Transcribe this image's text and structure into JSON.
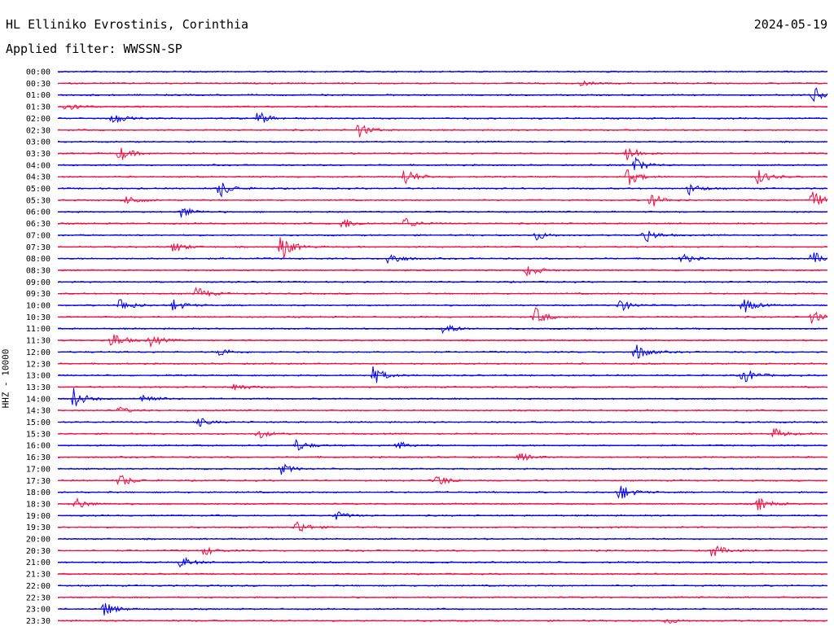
{
  "header": {
    "station": "HL Elliniko Evrostinis, Corinthia",
    "date": "2024-05-19",
    "filter": "Applied filter: WWSSN-SP"
  },
  "chart_data": {
    "type": "line",
    "ylabel": "HHZ - 10000",
    "row_labels": [
      "00:00",
      "00:30",
      "01:00",
      "01:30",
      "02:00",
      "02:30",
      "03:00",
      "03:30",
      "04:00",
      "04:30",
      "05:00",
      "05:30",
      "06:00",
      "06:30",
      "07:00",
      "07:30",
      "08:00",
      "08:30",
      "09:00",
      "09:30",
      "10:00",
      "10:30",
      "11:00",
      "11:30",
      "12:00",
      "12:30",
      "13:00",
      "13:30",
      "14:00",
      "14:30",
      "15:00",
      "15:30",
      "16:00",
      "16:30",
      "17:00",
      "17:30",
      "18:00",
      "18:30",
      "19:00",
      "19:30",
      "20:00",
      "20:30",
      "21:00",
      "21:30",
      "22:00",
      "22:30",
      "23:00",
      "23:30"
    ],
    "colors": [
      "#0000ee",
      "#ee1144"
    ],
    "x_range_minutes": [
      0,
      30
    ],
    "events": [
      {
        "row": 1,
        "t": 0.68,
        "amp": 3
      },
      {
        "row": 2,
        "t": 0.98,
        "amp": 12
      },
      {
        "row": 3,
        "t": 0.01,
        "amp": 7
      },
      {
        "row": 4,
        "t": 0.07,
        "amp": 8
      },
      {
        "row": 4,
        "t": 0.26,
        "amp": 9
      },
      {
        "row": 5,
        "t": 0.39,
        "amp": 10
      },
      {
        "row": 7,
        "t": 0.08,
        "amp": 10
      },
      {
        "row": 7,
        "t": 0.74,
        "amp": 11
      },
      {
        "row": 8,
        "t": 0.75,
        "amp": 10
      },
      {
        "row": 9,
        "t": 0.45,
        "amp": 12
      },
      {
        "row": 9,
        "t": 0.74,
        "amp": 12
      },
      {
        "row": 9,
        "t": 0.91,
        "amp": 10
      },
      {
        "row": 10,
        "t": 0.21,
        "amp": 12
      },
      {
        "row": 10,
        "t": 0.82,
        "amp": 8
      },
      {
        "row": 11,
        "t": 0.09,
        "amp": 8
      },
      {
        "row": 11,
        "t": 0.77,
        "amp": 10
      },
      {
        "row": 11,
        "t": 0.98,
        "amp": 12
      },
      {
        "row": 12,
        "t": 0.16,
        "amp": 8
      },
      {
        "row": 13,
        "t": 0.37,
        "amp": 8
      },
      {
        "row": 13,
        "t": 0.45,
        "amp": 8
      },
      {
        "row": 14,
        "t": 0.62,
        "amp": 7
      },
      {
        "row": 14,
        "t": 0.76,
        "amp": 12
      },
      {
        "row": 15,
        "t": 0.15,
        "amp": 8
      },
      {
        "row": 15,
        "t": 0.29,
        "amp": 18
      },
      {
        "row": 16,
        "t": 0.43,
        "amp": 10
      },
      {
        "row": 16,
        "t": 0.81,
        "amp": 7
      },
      {
        "row": 16,
        "t": 0.98,
        "amp": 9
      },
      {
        "row": 17,
        "t": 0.61,
        "amp": 9
      },
      {
        "row": 19,
        "t": 0.18,
        "amp": 9
      },
      {
        "row": 20,
        "t": 0.08,
        "amp": 10
      },
      {
        "row": 20,
        "t": 0.15,
        "amp": 8
      },
      {
        "row": 20,
        "t": 0.73,
        "amp": 8
      },
      {
        "row": 20,
        "t": 0.89,
        "amp": 11
      },
      {
        "row": 21,
        "t": 0.62,
        "amp": 12
      },
      {
        "row": 21,
        "t": 0.98,
        "amp": 9
      },
      {
        "row": 22,
        "t": 0.5,
        "amp": 9
      },
      {
        "row": 23,
        "t": 0.07,
        "amp": 12
      },
      {
        "row": 23,
        "t": 0.12,
        "amp": 8
      },
      {
        "row": 24,
        "t": 0.21,
        "amp": 6
      },
      {
        "row": 24,
        "t": 0.75,
        "amp": 12
      },
      {
        "row": 26,
        "t": 0.41,
        "amp": 12
      },
      {
        "row": 26,
        "t": 0.89,
        "amp": 12
      },
      {
        "row": 27,
        "t": 0.23,
        "amp": 6
      },
      {
        "row": 28,
        "t": 0.02,
        "amp": 14
      },
      {
        "row": 28,
        "t": 0.11,
        "amp": 8
      },
      {
        "row": 29,
        "t": 0.08,
        "amp": 4
      },
      {
        "row": 30,
        "t": 0.18,
        "amp": 7
      },
      {
        "row": 31,
        "t": 0.26,
        "amp": 6
      },
      {
        "row": 31,
        "t": 0.93,
        "amp": 7
      },
      {
        "row": 32,
        "t": 0.31,
        "amp": 8
      },
      {
        "row": 32,
        "t": 0.44,
        "amp": 6
      },
      {
        "row": 33,
        "t": 0.6,
        "amp": 6
      },
      {
        "row": 34,
        "t": 0.29,
        "amp": 7
      },
      {
        "row": 35,
        "t": 0.08,
        "amp": 9
      },
      {
        "row": 35,
        "t": 0.49,
        "amp": 10
      },
      {
        "row": 36,
        "t": 0.73,
        "amp": 12
      },
      {
        "row": 37,
        "t": 0.02,
        "amp": 10
      },
      {
        "row": 37,
        "t": 0.91,
        "amp": 9
      },
      {
        "row": 38,
        "t": 0.36,
        "amp": 6
      },
      {
        "row": 39,
        "t": 0.31,
        "amp": 10
      },
      {
        "row": 41,
        "t": 0.19,
        "amp": 6
      },
      {
        "row": 41,
        "t": 0.85,
        "amp": 9
      },
      {
        "row": 42,
        "t": 0.16,
        "amp": 8
      },
      {
        "row": 46,
        "t": 0.06,
        "amp": 10
      },
      {
        "row": 47,
        "t": 0.79,
        "amp": 4
      }
    ]
  }
}
